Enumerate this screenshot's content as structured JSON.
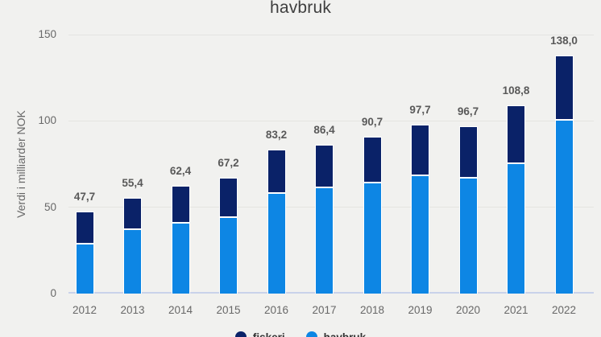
{
  "title": {
    "visible_line": "havbruk"
  },
  "y_axis": {
    "label": "Verdi i milliarder NOK"
  },
  "colors": {
    "background": "#f1f1ef",
    "fiskeri_navy": "#0a2268",
    "havbruk_blue": "#0d86e4",
    "gridline": "#e4e4e1",
    "baseline": "#c9d2ea",
    "axis_text": "#686868",
    "data_label": "#595959"
  },
  "legend": {
    "items": [
      {
        "label": "fiskeri",
        "color": "#0a2268"
      },
      {
        "label": "havbruk",
        "color": "#0d86e4"
      }
    ]
  },
  "chart_data": {
    "type": "bar",
    "stacked": true,
    "title": "havbruk",
    "ylabel": "Verdi i milliarder NOK",
    "ylim": [
      0,
      150
    ],
    "yticks": [
      0,
      50,
      100,
      150
    ],
    "grid": true,
    "legend_position": "bottom",
    "categories": [
      "2012",
      "2013",
      "2014",
      "2015",
      "2016",
      "2017",
      "2018",
      "2019",
      "2020",
      "2021",
      "2022"
    ],
    "series": [
      {
        "name": "havbruk",
        "color": "#0d86e4",
        "position": "bottom",
        "values": [
          28.7,
          37.2,
          41.1,
          44.2,
          58.2,
          61.3,
          64.1,
          68.6,
          67.0,
          75.7,
          100.6
        ]
      },
      {
        "name": "fiskeri",
        "color": "#0a2268",
        "position": "top",
        "values": [
          19.0,
          18.2,
          21.3,
          23.0,
          25.0,
          25.1,
          26.6,
          29.1,
          29.7,
          33.1,
          37.4
        ]
      }
    ],
    "totals": [
      47.7,
      55.4,
      62.4,
      67.2,
      83.2,
      86.4,
      90.7,
      97.7,
      96.7,
      108.8,
      138.0
    ],
    "total_labels": [
      "47,7",
      "55,4",
      "62,4",
      "67,2",
      "83,2",
      "86,4",
      "90,7",
      "97,7",
      "96,7",
      "108,8",
      "138,0"
    ]
  }
}
